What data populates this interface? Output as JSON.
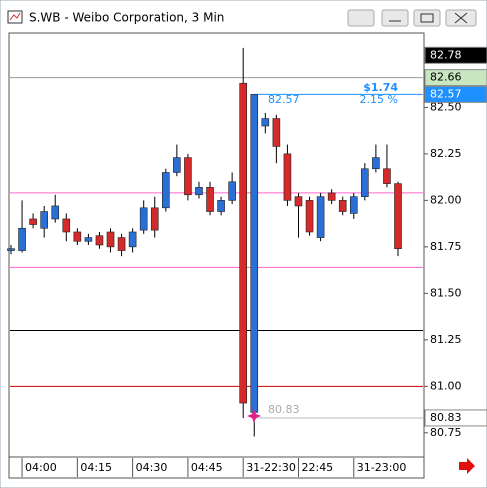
{
  "window": {
    "title": "S.WB - Weibo Corporation, 3 Min"
  },
  "chart_data": {
    "type": "candlestick",
    "categories": [
      null,
      "04:00",
      null,
      null,
      null,
      null,
      "04:15",
      null,
      null,
      null,
      null,
      "04:30",
      null,
      null,
      null,
      null,
      "04:45",
      null,
      null,
      null,
      null,
      "31-22:30",
      null,
      null,
      null,
      null,
      "22:45",
      null,
      null,
      null,
      null,
      "31-23:00",
      null,
      null,
      null,
      null
    ],
    "open": [
      81.73,
      81.73,
      81.9,
      81.85,
      81.9,
      81.9,
      81.83,
      81.78,
      81.81,
      81.83,
      81.8,
      81.75,
      81.84,
      81.96,
      81.96,
      82.15,
      82.23,
      82.03,
      82.07,
      81.94,
      82.0,
      82.63,
      80.86,
      82.4,
      82.44,
      82.25,
      82.02,
      82.0,
      81.8,
      82.04,
      82.0,
      81.93,
      82.02,
      82.17,
      82.17,
      82.09
    ],
    "high": [
      81.76,
      82.0,
      81.93,
      81.97,
      82.03,
      81.93,
      81.85,
      81.82,
      81.83,
      81.85,
      81.82,
      81.85,
      82.0,
      82.02,
      82.17,
      82.3,
      82.25,
      82.1,
      82.1,
      82.02,
      82.15,
      82.82,
      82.57,
      82.47,
      82.46,
      82.3,
      82.04,
      82.02,
      82.04,
      82.06,
      82.02,
      82.04,
      82.2,
      82.3,
      82.3,
      82.1
    ],
    "low": [
      81.71,
      81.72,
      81.85,
      81.8,
      81.88,
      81.78,
      81.76,
      81.76,
      81.74,
      81.72,
      81.7,
      81.72,
      81.82,
      81.8,
      81.94,
      82.13,
      82.0,
      82.01,
      81.92,
      81.92,
      81.98,
      80.83,
      80.73,
      82.36,
      82.2,
      81.97,
      81.8,
      81.81,
      81.78,
      81.98,
      81.92,
      81.9,
      82.0,
      82.15,
      82.07,
      81.7
    ],
    "close": [
      81.74,
      81.85,
      81.87,
      81.94,
      81.97,
      81.83,
      81.78,
      81.8,
      81.76,
      81.75,
      81.73,
      81.83,
      81.96,
      81.84,
      82.15,
      82.23,
      82.03,
      82.07,
      81.94,
      82.0,
      82.1,
      80.91,
      82.57,
      82.44,
      82.29,
      82.0,
      81.97,
      81.83,
      82.02,
      82.0,
      81.94,
      82.02,
      82.17,
      82.23,
      82.09,
      81.74
    ],
    "up_color": "#2a6fd6",
    "down_color": "#d42a2a",
    "ylim": [
      80.62,
      82.9
    ],
    "yticks": [
      80.75,
      {
        "value": 81,
        "label": "81.00"
      },
      81.25,
      {
        "value": 81.5,
        "label": "81.50"
      },
      81.75,
      {
        "value": 82,
        "label": "82.00"
      },
      82.25,
      {
        "value": 82.5,
        "label": "82.50"
      }
    ],
    "reference_lines": [
      {
        "value": 82.66,
        "color": "#999999"
      },
      {
        "value": 82.04,
        "color": "#ff66cc"
      },
      {
        "value": 81.64,
        "color": "#ff66cc"
      },
      {
        "value": 81.3,
        "color": "#000000"
      },
      {
        "value": 81.0,
        "color": "#cc0000"
      }
    ],
    "price_markers": [
      {
        "value": 82.78,
        "color": "#000000",
        "text_color": "#ffffff",
        "line": false
      },
      {
        "value": 82.66,
        "color": "#c8e6c0",
        "text_color": "#000000",
        "line": false
      },
      {
        "value": 82.57,
        "color": "#1e90ff",
        "text_color": "#ffffff",
        "line": true
      },
      {
        "value": 80.83,
        "color": "#ffffff",
        "text_color": "#000000",
        "line": true
      }
    ],
    "annotations": [
      "$1.74",
      "2.15 %"
    ]
  }
}
